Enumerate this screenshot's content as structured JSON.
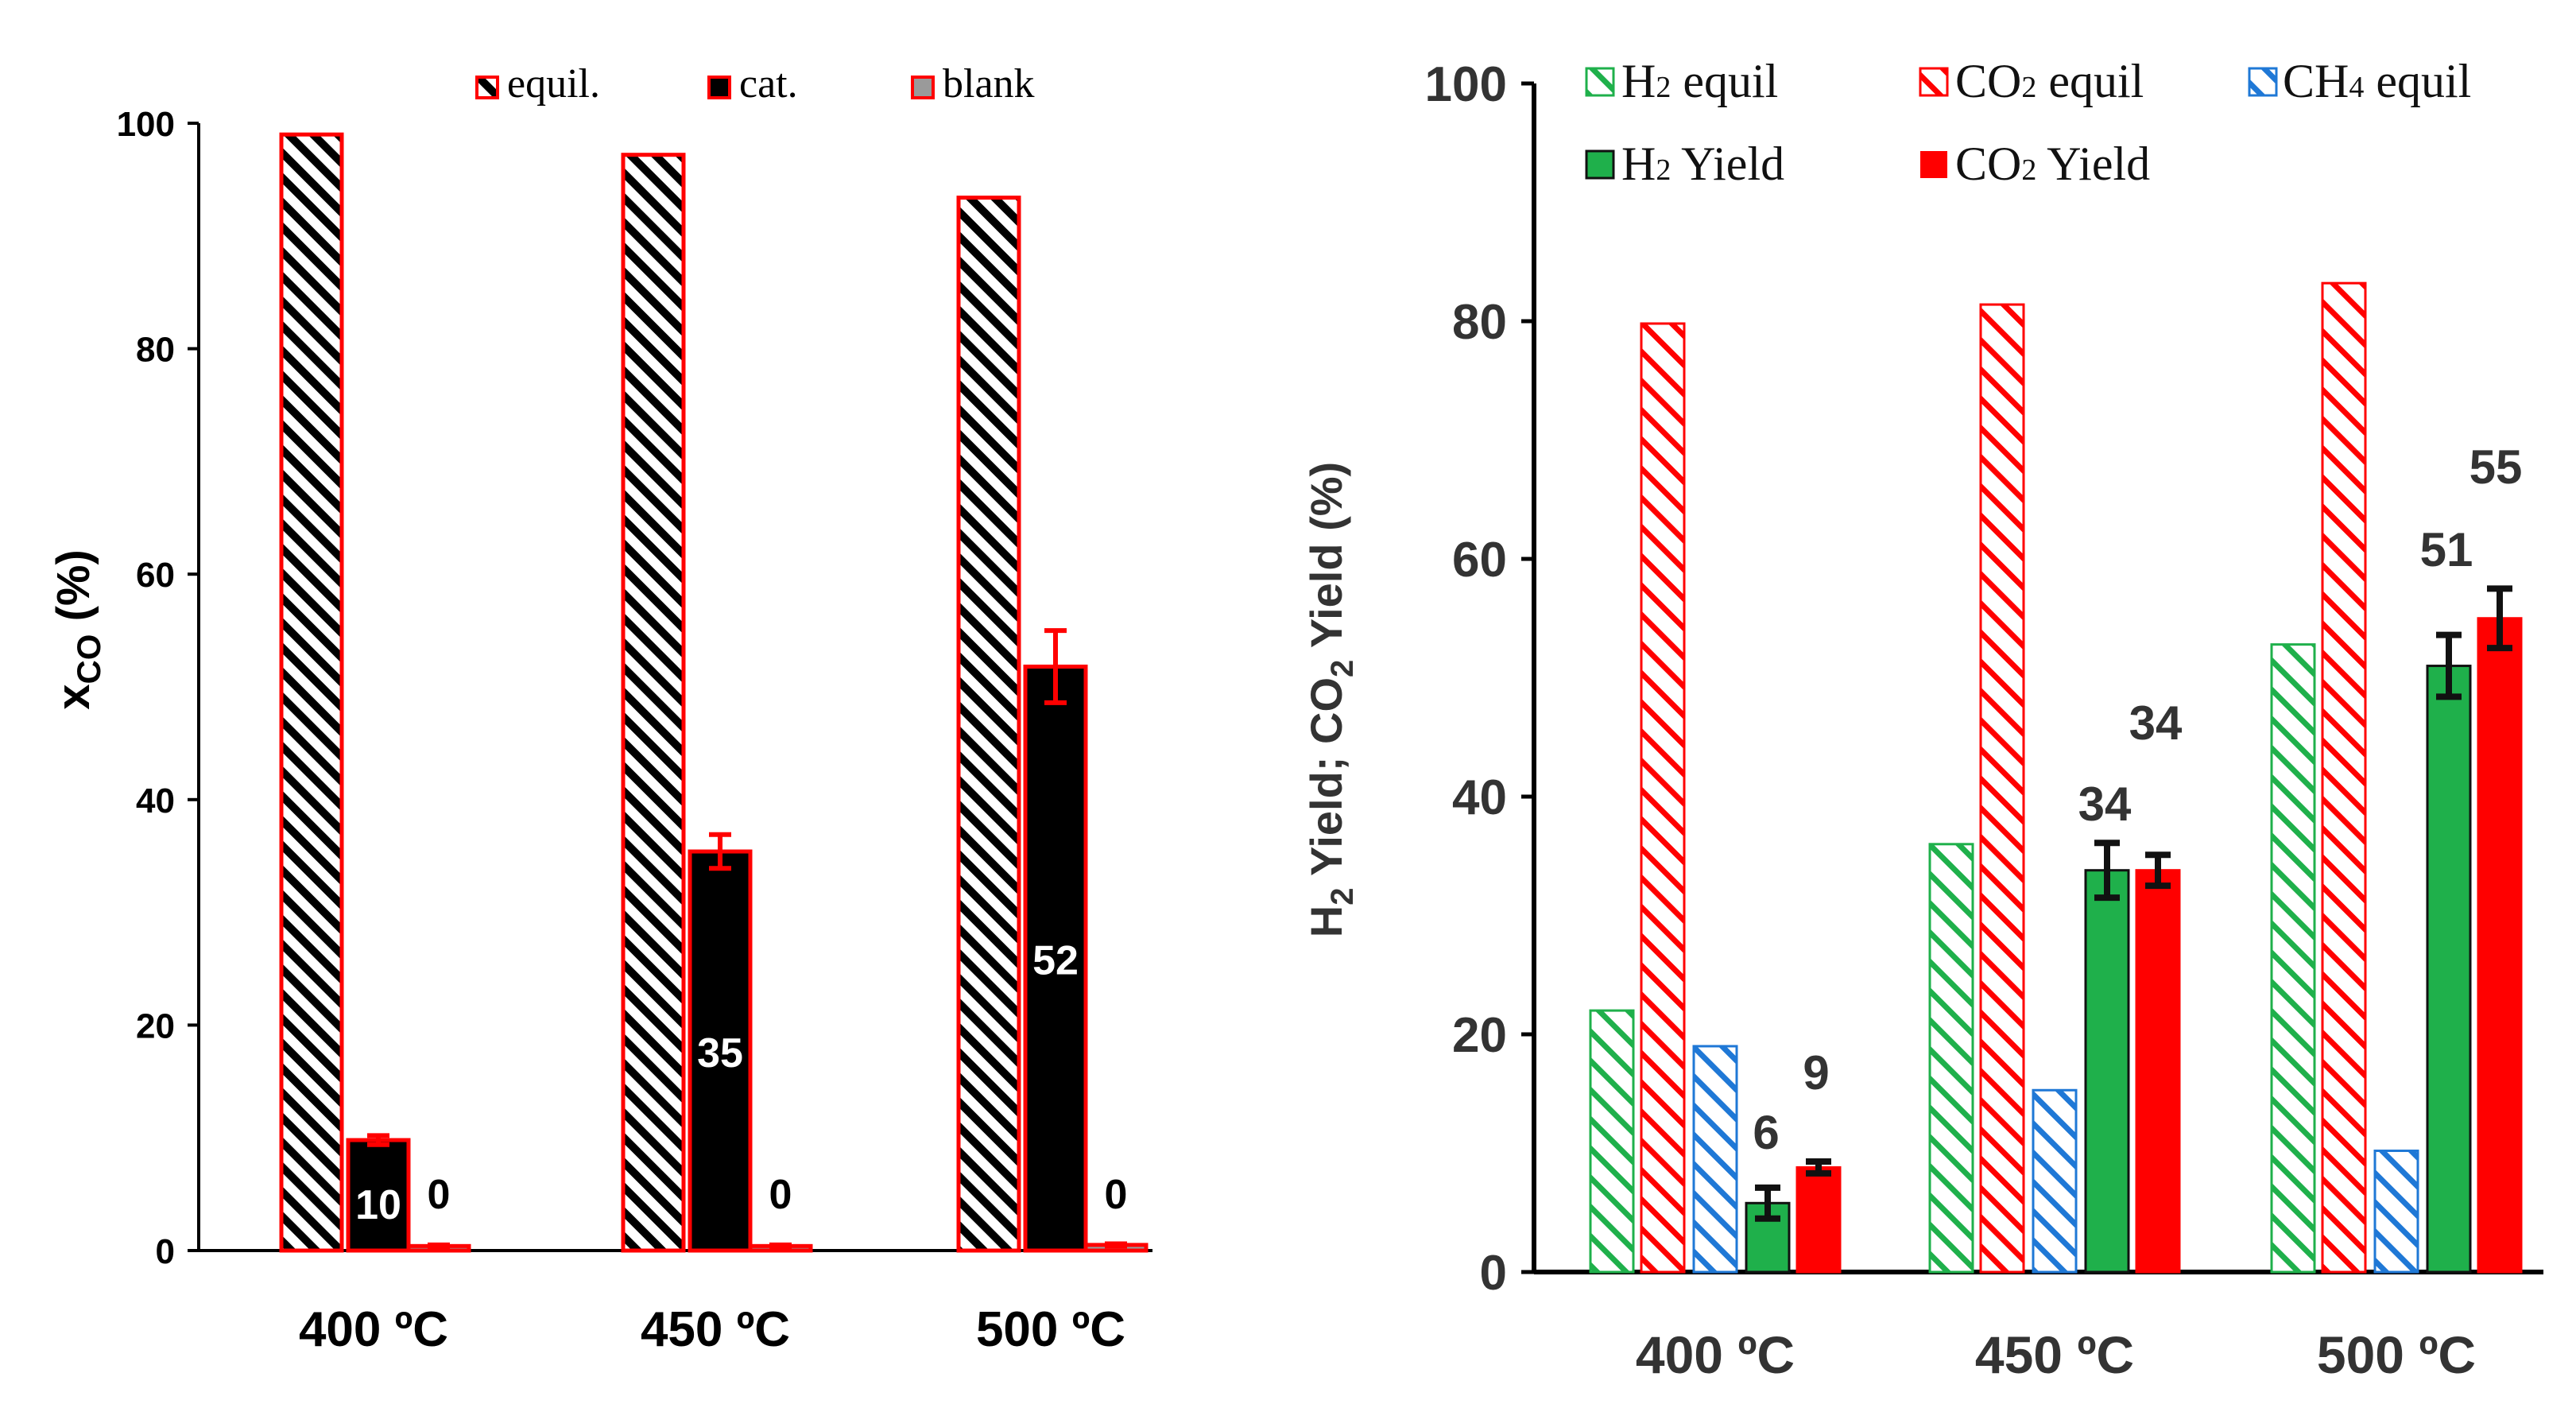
{
  "colors": {
    "red": "#ff0000",
    "red_dark": "#e81818",
    "green": "#1fb04b",
    "green_light": "#2bb24c",
    "blue": "#1f78d6",
    "black": "#000000",
    "grey": "#9a9a9a",
    "axis": "#000000"
  },
  "chart_data": [
    {
      "type": "bar",
      "categories": [
        "400 ºC",
        "450 ºC",
        "500 ºC"
      ],
      "ylabel_main": "x",
      "ylabel_sub": "CO",
      "ylabel_tail": " (%)",
      "ylim": [
        0,
        100
      ],
      "yticks": [
        "0",
        "20",
        "40",
        "60",
        "80",
        "100"
      ],
      "legend": [
        "equil.",
        "cat.",
        "blank"
      ],
      "series": [
        {
          "name": "equil.",
          "values": [
            99,
            97.2,
            93.4
          ],
          "labels": [
            "",
            "",
            ""
          ]
        },
        {
          "name": "cat.",
          "values": [
            9.8,
            35.4,
            51.8
          ],
          "errors": [
            0.4,
            1.5,
            3.2
          ],
          "labels": [
            "10",
            "35",
            "52"
          ]
        },
        {
          "name": "blank",
          "values": [
            0.4,
            0.4,
            0.5
          ],
          "errors": [
            0.1,
            0.1,
            0.1
          ],
          "labels": [
            "0",
            "0",
            "0"
          ]
        }
      ]
    },
    {
      "type": "bar",
      "categories": [
        "400 ºC",
        "450 ºC",
        "500 ºC"
      ],
      "ylabel_h": "H",
      "ylabel_sub1": "2",
      "ylabel_mid": " Yield; CO",
      "ylabel_sub2": "2",
      "ylabel_tail": " Yield (%)",
      "ylim": [
        0,
        100
      ],
      "yticks": [
        "0",
        "20",
        "40",
        "60",
        "80",
        "100"
      ],
      "legend": [
        {
          "main": "H",
          "sub": "2",
          "rest": " equil"
        },
        {
          "main": "CO",
          "sub": "2",
          "rest": " equil"
        },
        {
          "main": "CH",
          "sub": "4",
          "rest": " equil"
        },
        {
          "main": "H",
          "sub": "2",
          "rest": " Yield"
        },
        {
          "main": "CO",
          "sub": "2",
          "rest": " Yield"
        }
      ],
      "series": [
        {
          "name": "H2 equil",
          "values": [
            22,
            36,
            52.8
          ],
          "labels": [
            "",
            "",
            ""
          ]
        },
        {
          "name": "CO2 equil",
          "values": [
            79.8,
            81.4,
            83.2
          ],
          "labels": [
            "",
            "",
            ""
          ]
        },
        {
          "name": "CH4 equil",
          "values": [
            19,
            15.3,
            10.2
          ],
          "labels": [
            "",
            "",
            ""
          ]
        },
        {
          "name": "H2 Yield",
          "values": [
            5.8,
            33.8,
            51
          ],
          "errors": [
            1.3,
            2.3,
            2.6
          ],
          "labels": [
            "6",
            "34",
            "51"
          ]
        },
        {
          "name": "CO2 Yield",
          "values": [
            8.8,
            33.8,
            55
          ],
          "errors": [
            0.5,
            1.3,
            2.5
          ],
          "labels": [
            "9",
            "34",
            "55"
          ]
        }
      ]
    }
  ]
}
